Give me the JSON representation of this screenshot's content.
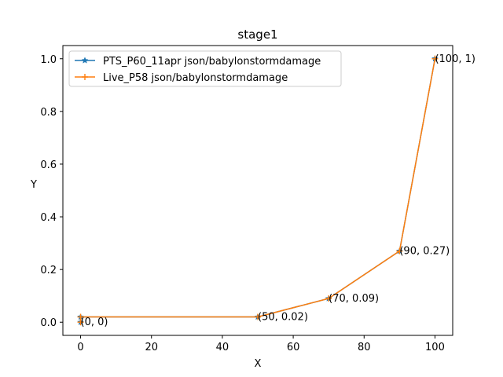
{
  "chart_data": {
    "type": "line",
    "title": "stage1",
    "xlabel": "X",
    "ylabel": "Y",
    "xlim": [
      -5,
      105
    ],
    "ylim": [
      -0.05,
      1.05
    ],
    "xticks": [
      0,
      20,
      40,
      60,
      80,
      100
    ],
    "xtick_labels": [
      "0",
      "20",
      "40",
      "60",
      "80",
      "100"
    ],
    "yticks": [
      0.0,
      0.2,
      0.4,
      0.6,
      0.8,
      1.0
    ],
    "ytick_labels": [
      "0.0",
      "0.2",
      "0.4",
      "0.6",
      "0.8",
      "1.0"
    ],
    "grid": false,
    "legend_position": "top-left",
    "series": [
      {
        "name": "PTS_P60_11apr json/babylonstormdamage",
        "color": "#1f77b4",
        "marker": "star",
        "x": [
          0,
          0,
          50,
          70,
          90,
          100
        ],
        "y": [
          0,
          0.02,
          0.02,
          0.09,
          0.27,
          1
        ]
      },
      {
        "name": "Live_P58 json/babylonstormdamage",
        "color": "#ff7f0e",
        "marker": "plus",
        "x": [
          0,
          0,
          50,
          70,
          90,
          100
        ],
        "y": [
          0,
          0.02,
          0.02,
          0.09,
          0.27,
          1
        ]
      }
    ],
    "annotations": [
      {
        "x": 0,
        "y": 0,
        "text": "(0, 0)"
      },
      {
        "x": 50,
        "y": 0.02,
        "text": "(50, 0.02)"
      },
      {
        "x": 70,
        "y": 0.09,
        "text": "(70, 0.09)"
      },
      {
        "x": 90,
        "y": 0.27,
        "text": "(90, 0.27)"
      },
      {
        "x": 100,
        "y": 1,
        "text": "(100, 1)"
      }
    ]
  }
}
